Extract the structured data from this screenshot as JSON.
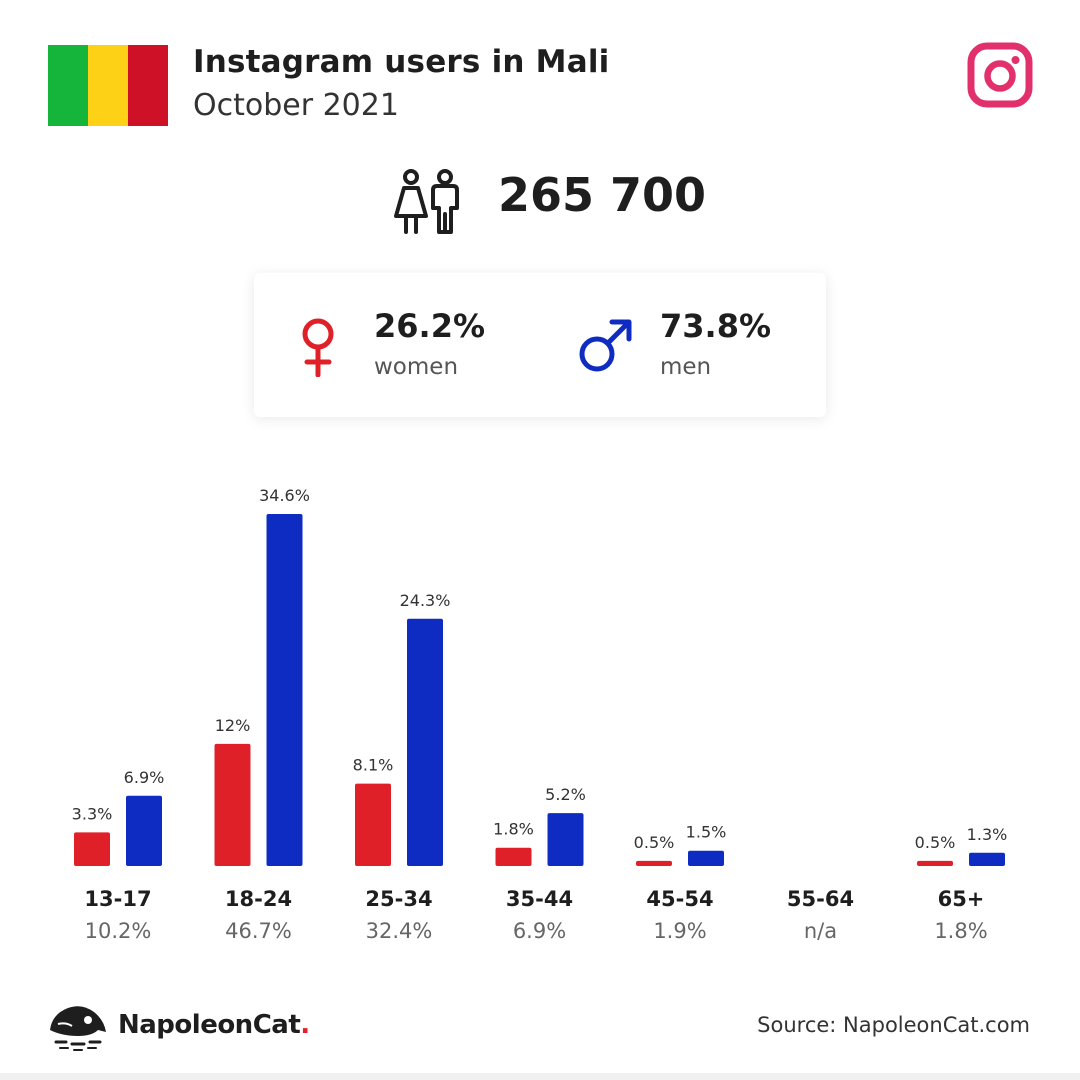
{
  "header": {
    "title": "Instagram users in Mali",
    "subtitle": "October 2021"
  },
  "flag": {
    "colors": [
      "#14b53a",
      "#fcd116",
      "#ce1126"
    ]
  },
  "icons": {
    "platform": "instagram-icon",
    "users": "users-icon",
    "female": "female-icon",
    "male": "male-icon",
    "brand": "napoleoncat-logo"
  },
  "summary": {
    "total": "265 700"
  },
  "gender": {
    "women_pct": "26.2%",
    "women_label": "women",
    "men_pct": "73.8%",
    "men_label": "men"
  },
  "colors": {
    "women": "#df2029",
    "men": "#0f2cc2",
    "instagram": "#e1306c"
  },
  "chart_data": {
    "type": "bar",
    "categories": [
      "13-17",
      "18-24",
      "25-34",
      "35-44",
      "45-54",
      "55-64",
      "65+"
    ],
    "category_totals": [
      "10.2%",
      "46.7%",
      "32.4%",
      "6.9%",
      "1.9%",
      "n/a",
      "1.8%"
    ],
    "series": [
      {
        "values": [
          3.3,
          12,
          8.1,
          1.8,
          0.5,
          null,
          0.5
        ],
        "labels": [
          "3.3%",
          "12%",
          "8.1%",
          "1.8%",
          "0.5%",
          "",
          "0.5%"
        ],
        "color": "#df2029"
      },
      {
        "values": [
          6.9,
          34.6,
          24.3,
          5.2,
          1.5,
          null,
          1.3
        ],
        "labels": [
          "6.9%",
          "34.6%",
          "24.3%",
          "5.2%",
          "1.5%",
          "",
          "1.3%"
        ],
        "color": "#0f2cc2"
      }
    ],
    "ylim": [
      0,
      34.6
    ],
    "grid": false,
    "legend": "none"
  },
  "footer": {
    "brand_name": "NapoleonCat",
    "brand_dot": ".",
    "source": "Source: NapoleonCat.com"
  }
}
